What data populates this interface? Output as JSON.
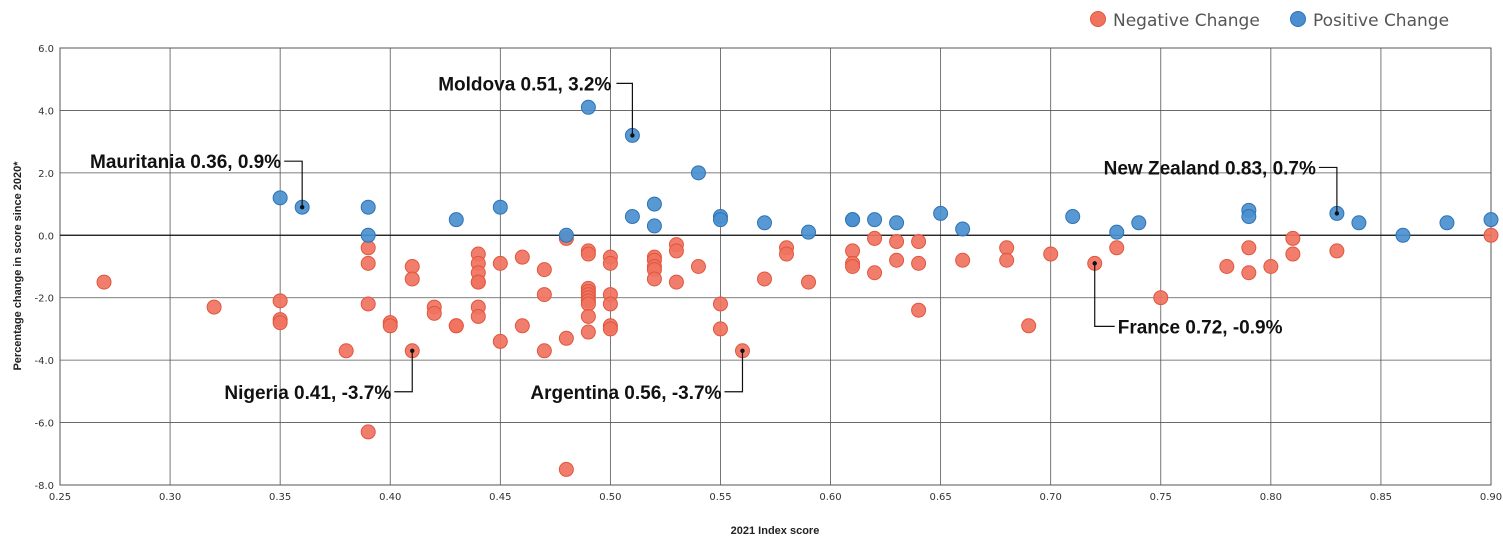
{
  "chart_data": {
    "type": "scatter",
    "xlabel": "2021 Index score",
    "ylabel": "Percentage change in score since 2020*",
    "xlim": [
      0.25,
      0.9
    ],
    "ylim": [
      -8.0,
      6.0
    ],
    "xticks": [
      "0.25",
      "0.30",
      "0.35",
      "0.40",
      "0.45",
      "0.50",
      "0.55",
      "0.60",
      "0.65",
      "0.70",
      "0.75",
      "0.80",
      "0.85",
      "0.90"
    ],
    "yticks": [
      "6.0",
      "4.0",
      "2.0",
      "0.0",
      "-2.0",
      "-4.0",
      "-6.0",
      "-8.0"
    ],
    "grid": true,
    "legend_position": "top-right",
    "legend": [
      {
        "name": "Negative Change",
        "color": "#f07360"
      },
      {
        "name": "Positive Change",
        "color": "#4a90d0"
      }
    ],
    "series": [
      {
        "name": "Negative Change",
        "color": "#f07360",
        "points": [
          [
            0.27,
            -1.5
          ],
          [
            0.32,
            -2.3
          ],
          [
            0.35,
            -2.1
          ],
          [
            0.35,
            -2.7
          ],
          [
            0.35,
            -2.8
          ],
          [
            0.38,
            -3.7
          ],
          [
            0.39,
            -0.4
          ],
          [
            0.39,
            -0.9
          ],
          [
            0.39,
            -2.2
          ],
          [
            0.39,
            -6.3
          ],
          [
            0.4,
            -2.8
          ],
          [
            0.4,
            -2.9
          ],
          [
            0.41,
            -1.0
          ],
          [
            0.41,
            -1.4
          ],
          [
            0.41,
            -3.7
          ],
          [
            0.42,
            -2.3
          ],
          [
            0.42,
            -2.5
          ],
          [
            0.43,
            -2.9
          ],
          [
            0.43,
            -2.9
          ],
          [
            0.44,
            -0.6
          ],
          [
            0.44,
            -0.9
          ],
          [
            0.44,
            -1.2
          ],
          [
            0.44,
            -1.5
          ],
          [
            0.44,
            -2.3
          ],
          [
            0.44,
            -2.6
          ],
          [
            0.44,
            -1.5
          ],
          [
            0.45,
            -0.9
          ],
          [
            0.45,
            -3.4
          ],
          [
            0.46,
            -0.7
          ],
          [
            0.46,
            -2.9
          ],
          [
            0.47,
            -1.1
          ],
          [
            0.47,
            -1.9
          ],
          [
            0.47,
            -3.7
          ],
          [
            0.48,
            -0.1
          ],
          [
            0.48,
            -3.3
          ],
          [
            0.48,
            -7.5
          ],
          [
            0.49,
            -0.5
          ],
          [
            0.49,
            -0.6
          ],
          [
            0.49,
            -1.7
          ],
          [
            0.49,
            -1.8
          ],
          [
            0.49,
            -1.9
          ],
          [
            0.49,
            -2.0
          ],
          [
            0.49,
            -2.1
          ],
          [
            0.49,
            -2.2
          ],
          [
            0.49,
            -2.6
          ],
          [
            0.49,
            -3.1
          ],
          [
            0.5,
            -0.7
          ],
          [
            0.5,
            -0.9
          ],
          [
            0.5,
            -1.9
          ],
          [
            0.5,
            -2.2
          ],
          [
            0.5,
            -2.9
          ],
          [
            0.5,
            -3.0
          ],
          [
            0.52,
            -0.7
          ],
          [
            0.52,
            -0.8
          ],
          [
            0.52,
            -1.0
          ],
          [
            0.52,
            -1.1
          ],
          [
            0.52,
            -1.4
          ],
          [
            0.53,
            -0.3
          ],
          [
            0.53,
            -0.5
          ],
          [
            0.53,
            -1.5
          ],
          [
            0.54,
            -1.0
          ],
          [
            0.55,
            -2.2
          ],
          [
            0.55,
            -3.0
          ],
          [
            0.56,
            -3.7
          ],
          [
            0.57,
            -1.4
          ],
          [
            0.58,
            -0.4
          ],
          [
            0.58,
            -0.6
          ],
          [
            0.59,
            -1.5
          ],
          [
            0.61,
            -0.5
          ],
          [
            0.61,
            -0.9
          ],
          [
            0.61,
            -1.0
          ],
          [
            0.62,
            -0.1
          ],
          [
            0.62,
            -1.2
          ],
          [
            0.63,
            -0.2
          ],
          [
            0.63,
            -0.8
          ],
          [
            0.64,
            -0.2
          ],
          [
            0.64,
            -0.9
          ],
          [
            0.64,
            -2.4
          ],
          [
            0.66,
            -0.8
          ],
          [
            0.68,
            -0.4
          ],
          [
            0.68,
            -0.8
          ],
          [
            0.69,
            -2.9
          ],
          [
            0.7,
            -0.6
          ],
          [
            0.72,
            -0.9
          ],
          [
            0.73,
            -0.4
          ],
          [
            0.75,
            -2.0
          ],
          [
            0.78,
            -1.0
          ],
          [
            0.79,
            -0.4
          ],
          [
            0.79,
            -1.2
          ],
          [
            0.8,
            -1.0
          ],
          [
            0.81,
            -0.1
          ],
          [
            0.81,
            -0.6
          ],
          [
            0.83,
            -0.5
          ],
          [
            0.9,
            0.0
          ]
        ]
      },
      {
        "name": "Positive Change",
        "color": "#4a90d0",
        "points": [
          [
            0.35,
            1.2
          ],
          [
            0.36,
            0.9
          ],
          [
            0.39,
            0.9
          ],
          [
            0.39,
            0.0
          ],
          [
            0.43,
            0.5
          ],
          [
            0.45,
            0.9
          ],
          [
            0.48,
            0.0
          ],
          [
            0.49,
            4.1
          ],
          [
            0.51,
            3.2
          ],
          [
            0.51,
            0.6
          ],
          [
            0.52,
            1.0
          ],
          [
            0.52,
            0.3
          ],
          [
            0.54,
            2.0
          ],
          [
            0.55,
            0.6
          ],
          [
            0.55,
            0.5
          ],
          [
            0.57,
            0.4
          ],
          [
            0.59,
            0.1
          ],
          [
            0.61,
            0.5
          ],
          [
            0.61,
            0.5
          ],
          [
            0.62,
            0.5
          ],
          [
            0.63,
            0.4
          ],
          [
            0.65,
            0.7
          ],
          [
            0.66,
            0.2
          ],
          [
            0.71,
            0.6
          ],
          [
            0.73,
            0.1
          ],
          [
            0.74,
            0.4
          ],
          [
            0.79,
            0.8
          ],
          [
            0.79,
            0.6
          ],
          [
            0.83,
            0.7
          ],
          [
            0.84,
            0.4
          ],
          [
            0.86,
            0.0
          ],
          [
            0.88,
            0.4
          ],
          [
            0.9,
            0.5
          ]
        ]
      }
    ],
    "annotations": [
      {
        "text": "Moldova 0.51, 3.2%",
        "x": 0.51,
        "y": 3.2
      },
      {
        "text": "Mauritania 0.36, 0.9%",
        "x": 0.36,
        "y": 0.9
      },
      {
        "text": "New Zealand 0.83, 0.7%",
        "x": 0.83,
        "y": 0.7
      },
      {
        "text": "France 0.72, -0.9%",
        "x": 0.72,
        "y": -0.9
      },
      {
        "text": "Nigeria 0.41, -3.7%",
        "x": 0.41,
        "y": -3.7
      },
      {
        "text": "Argentina 0.56, -3.7%",
        "x": 0.56,
        "y": -3.7
      }
    ]
  }
}
